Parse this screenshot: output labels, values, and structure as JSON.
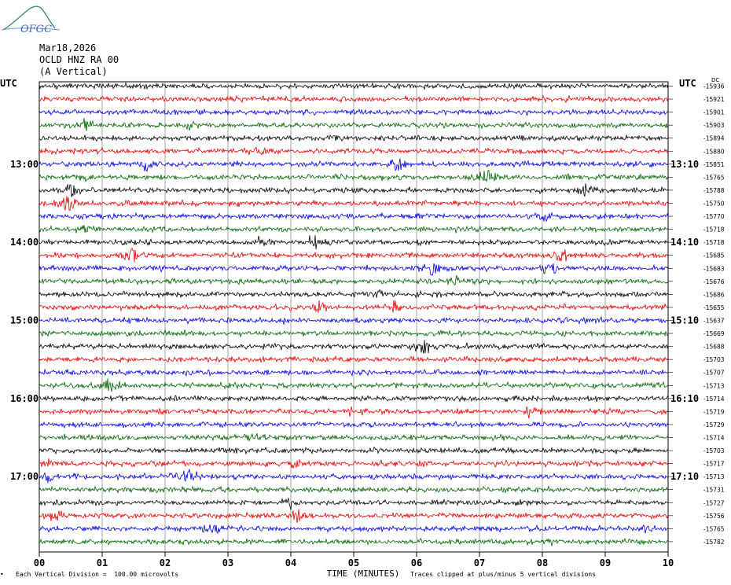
{
  "header": {
    "logo_text": "OFGC",
    "date": "Mar18,2026",
    "station": "OCLD HNZ RA 00",
    "component": "(A Vertical)"
  },
  "chart_data": {
    "type": "line",
    "left_axis_title": "UTC",
    "right_axis_title": "UTC",
    "right_units_label": "DC",
    "x_axis_label": "TIME (MINUTES)",
    "x_ticks": [
      "00",
      "01",
      "02",
      "03",
      "04",
      "05",
      "06",
      "07",
      "08",
      "09",
      "10"
    ],
    "xlim": [
      0,
      10
    ],
    "left_time_labels": [
      {
        "label": "13:00",
        "row": 6
      },
      {
        "label": "14:00",
        "row": 12
      },
      {
        "label": "15:00",
        "row": 18
      },
      {
        "label": "16:00",
        "row": 24
      },
      {
        "label": "17:00",
        "row": 30
      }
    ],
    "right_time_labels": [
      {
        "label": "13:10",
        "row": 6
      },
      {
        "label": "14:10",
        "row": 12
      },
      {
        "label": "15:10",
        "row": 18
      },
      {
        "label": "16:10",
        "row": 24
      },
      {
        "label": "17:10",
        "row": 30
      }
    ],
    "trace_colors": [
      "#000000",
      "#ee0000",
      "#0000ee",
      "#006400"
    ],
    "dc_offsets": [
      -15936,
      -15921,
      -15901,
      -15903,
      -15894,
      -15880,
      -15851,
      -15765,
      -15788,
      -15750,
      -15770,
      -15718,
      -15718,
      -15685,
      -15683,
      -15676,
      -15686,
      -15655,
      -15637,
      -15669,
      -15688,
      -15703,
      -15707,
      -15713,
      -15714,
      -15719,
      -15729,
      -15714,
      -15703,
      -15717,
      -15713,
      -15731,
      -15727,
      -15756,
      -15765,
      -15782
    ],
    "footer_left": "Each Vertical Division =  100.00 microvolts",
    "footer_right": "Traces clipped at plus/minus 5 vertical divisions"
  }
}
